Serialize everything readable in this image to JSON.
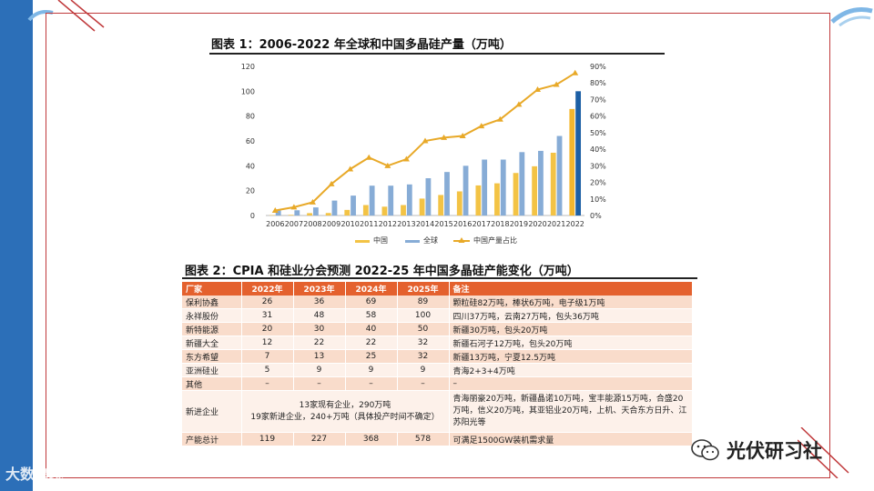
{
  "fig1": {
    "title": "图表 1：2006-2022 年全球和中国多晶硅产量（万吨）",
    "chart_data": {
      "type": "bar",
      "categories": [
        "2006",
        "2007",
        "2008",
        "2009",
        "2010",
        "2011",
        "2012",
        "2013",
        "2014",
        "2015",
        "2016",
        "2017",
        "2018",
        "2019",
        "2020",
        "2021",
        "2022"
      ],
      "series": [
        {
          "name": "中国",
          "kind": "bar",
          "axis": "left",
          "values": [
            0.3,
            0.5,
            1.9,
            2,
            4.5,
            8.4,
            7.1,
            8.4,
            13.6,
            16.5,
            19.4,
            24.2,
            25.9,
            34.2,
            39.6,
            50.5,
            85.7
          ]
        },
        {
          "name": "全球",
          "kind": "bar",
          "axis": "left",
          "values": [
            4,
            4.2,
            6.5,
            12,
            16,
            24,
            24,
            25,
            30,
            35,
            40,
            45,
            45,
            51,
            52,
            64,
            100
          ]
        },
        {
          "name": "中国产量占比",
          "kind": "line",
          "axis": "right",
          "values": [
            3,
            5,
            8,
            19,
            28,
            35,
            30,
            34,
            45,
            47,
            48,
            54,
            58,
            67,
            76,
            79,
            86
          ]
        }
      ],
      "left_axis": {
        "min": 0,
        "max": 120,
        "ticks": [
          "0",
          "20",
          "40",
          "60",
          "80",
          "100",
          "120"
        ]
      },
      "right_axis": {
        "min": 0,
        "max": 90,
        "ticks": [
          "0%",
          "10%",
          "20%",
          "30%",
          "40%",
          "50%",
          "60%",
          "70%",
          "80%",
          "90%"
        ]
      },
      "colors": {
        "china": "#f3c345",
        "global": "#87acd6",
        "ratio": "#e8a928",
        "global_2022": "#1c5fa5",
        "china_2022": "#f2b62e"
      },
      "legend": [
        "中国",
        "全球",
        "中国产量占比"
      ],
      "legend_position": "bottom"
    }
  },
  "fig2": {
    "title": "图表 2：CPIA 和硅业分会预测 2022-25 年中国多晶硅产能变化（万吨）",
    "headers": [
      "厂家",
      "2022年",
      "2023年",
      "2024年",
      "2025年",
      "备注"
    ],
    "rows": [
      {
        "name": "保利协鑫",
        "y22": "26",
        "y23": "36",
        "y24": "69",
        "y25": "89",
        "note": "颗粒硅82万吨，棒状6万吨，电子级1万吨"
      },
      {
        "name": "永祥股份",
        "y22": "31",
        "y23": "48",
        "y24": "58",
        "y25": "100",
        "note": "四川37万吨，云南27万吨，包头36万吨"
      },
      {
        "name": "新特能源",
        "y22": "20",
        "y23": "30",
        "y24": "40",
        "y25": "50",
        "note": "新疆30万吨，包头20万吨"
      },
      {
        "name": "新疆大全",
        "y22": "12",
        "y23": "22",
        "y24": "22",
        "y25": "32",
        "note": "新疆石河子12万吨，包头20万吨"
      },
      {
        "name": "东方希望",
        "y22": "7",
        "y23": "13",
        "y24": "25",
        "y25": "32",
        "note": "新疆13万吨，宁夏12.5万吨"
      },
      {
        "name": "亚洲硅业",
        "y22": "5",
        "y23": "9",
        "y24": "9",
        "y25": "9",
        "note": "青海2+3+4万吨"
      },
      {
        "name": "其他",
        "y22": "–",
        "y23": "–",
        "y24": "–",
        "y25": "–",
        "note": "–"
      }
    ],
    "new_entrants": {
      "name": "新进企业",
      "line1": "13家现有企业，290万吨",
      "line2": "19家新进企业，240+万吨（具体投产时间不确定）",
      "note": "青海丽豪20万吨，新疆晶诺10万吨，宝丰能源15万吨，合盛20万吨，信义20万吨，其亚铝业20万吨，上机、天合东方日升、江苏阳光等"
    },
    "total": {
      "name": "产能总计",
      "y22": "119",
      "y23": "227",
      "y24": "368",
      "y25": "578",
      "note": "可满足1500GW装机需求量"
    }
  },
  "watermark_left": "大数跨境",
  "watermark_right": "光伏研习社"
}
